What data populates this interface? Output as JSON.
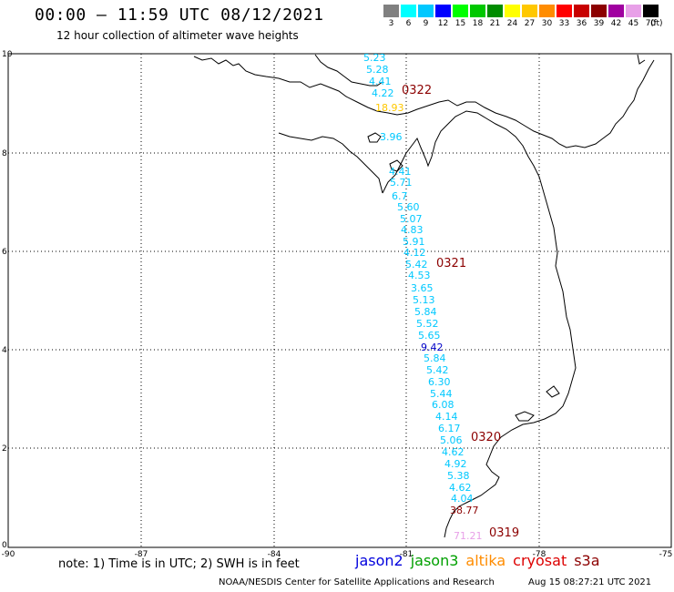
{
  "title": "00:00 – 11:59 UTC 08/12/2021",
  "subtitle": "12 hour collection of altimeter wave heights",
  "legend": {
    "unit": "(ft)",
    "items": [
      {
        "label": "3",
        "color": "#808080"
      },
      {
        "label": "6",
        "color": "#00ffff"
      },
      {
        "label": "9",
        "color": "#00c8ff"
      },
      {
        "label": "12",
        "color": "#0000ff"
      },
      {
        "label": "15",
        "color": "#00ff00"
      },
      {
        "label": "18",
        "color": "#00c800"
      },
      {
        "label": "21",
        "color": "#008c00"
      },
      {
        "label": "24",
        "color": "#ffff00"
      },
      {
        "label": "27",
        "color": "#ffc800"
      },
      {
        "label": "30",
        "color": "#ff8c00"
      },
      {
        "label": "33",
        "color": "#ff0000"
      },
      {
        "label": "36",
        "color": "#c80000"
      },
      {
        "label": "39",
        "color": "#8c0000"
      },
      {
        "label": "42",
        "color": "#a000a0"
      },
      {
        "label": "45",
        "color": "#e8a0e8"
      },
      {
        "label": "70",
        "color": "#000000"
      }
    ]
  },
  "axes": {
    "x_ticks": [
      "-90",
      "-87",
      "-84",
      "-81",
      "-78",
      "-75"
    ],
    "y_ticks": [
      "0",
      "2",
      "4",
      "6",
      "8",
      "10"
    ]
  },
  "observations": [
    {
      "text": "5.23",
      "color": "#00c8ff"
    },
    {
      "text": "5.28",
      "color": "#00c8ff"
    },
    {
      "text": "4.41",
      "color": "#00c8ff"
    },
    {
      "text": "4.22",
      "color": "#00c8ff"
    },
    {
      "text": "18.93",
      "color": "#ffc800"
    },
    {
      "text": "3.96",
      "color": "#00c8ff"
    },
    {
      "text": "4.41",
      "color": "#00c8ff"
    },
    {
      "text": "5.71",
      "color": "#00c8ff"
    },
    {
      "text": "6.7",
      "color": "#00c8ff"
    },
    {
      "text": "5.60",
      "color": "#00c8ff"
    },
    {
      "text": "5.07",
      "color": "#00c8ff"
    },
    {
      "text": "4.83",
      "color": "#00c8ff"
    },
    {
      "text": "5.91",
      "color": "#00c8ff"
    },
    {
      "text": "4.12",
      "color": "#00c8ff"
    },
    {
      "text": "5.42",
      "color": "#00c8ff"
    },
    {
      "text": "4.53",
      "color": "#00c8ff"
    },
    {
      "text": "3.65",
      "color": "#00c8ff"
    },
    {
      "text": "5.13",
      "color": "#00c8ff"
    },
    {
      "text": "5.84",
      "color": "#00c8ff"
    },
    {
      "text": "5.52",
      "color": "#00c8ff"
    },
    {
      "text": "5.65",
      "color": "#00c8ff"
    },
    {
      "text": "9.42",
      "color": "#0000c8"
    },
    {
      "text": "5.84",
      "color": "#00c8ff"
    },
    {
      "text": "5.42",
      "color": "#00c8ff"
    },
    {
      "text": "6.30",
      "color": "#00c8ff"
    },
    {
      "text": "5.44",
      "color": "#00c8ff"
    },
    {
      "text": "6.08",
      "color": "#00c8ff"
    },
    {
      "text": "4.14",
      "color": "#00c8ff"
    },
    {
      "text": "6.17",
      "color": "#00c8ff"
    },
    {
      "text": "5.06",
      "color": "#00c8ff"
    },
    {
      "text": "4.62",
      "color": "#00c8ff"
    },
    {
      "text": "4.92",
      "color": "#00c8ff"
    },
    {
      "text": "5.38",
      "color": "#00c8ff"
    },
    {
      "text": "4.62",
      "color": "#00c8ff"
    },
    {
      "text": "4.04",
      "color": "#00c8ff"
    },
    {
      "text": "38.77",
      "color": "#8c0000"
    },
    {
      "text": "71.21",
      "color": "#e8a0e8"
    }
  ],
  "pass_times": [
    {
      "text": "0322",
      "color": "#8c0000"
    },
    {
      "text": "0321",
      "color": "#8c0000"
    },
    {
      "text": "0320",
      "color": "#8c0000"
    },
    {
      "text": "0319",
      "color": "#8c0000"
    }
  ],
  "note": "note: 1) Time is in UTC; 2) SWH is in feet",
  "satellites": [
    {
      "name": "jason2",
      "color": "#0000dd"
    },
    {
      "name": "jason3",
      "color": "#00a000"
    },
    {
      "name": "altika",
      "color": "#ff8c00"
    },
    {
      "name": "cryosat",
      "color": "#dd0000"
    },
    {
      "name": "s3a",
      "color": "#8c0000"
    }
  ],
  "credit": "NOAA/NESDIS Center for Satellite Applications and Research",
  "timestamp": "Aug 15 08:27:21 UTC 2021"
}
